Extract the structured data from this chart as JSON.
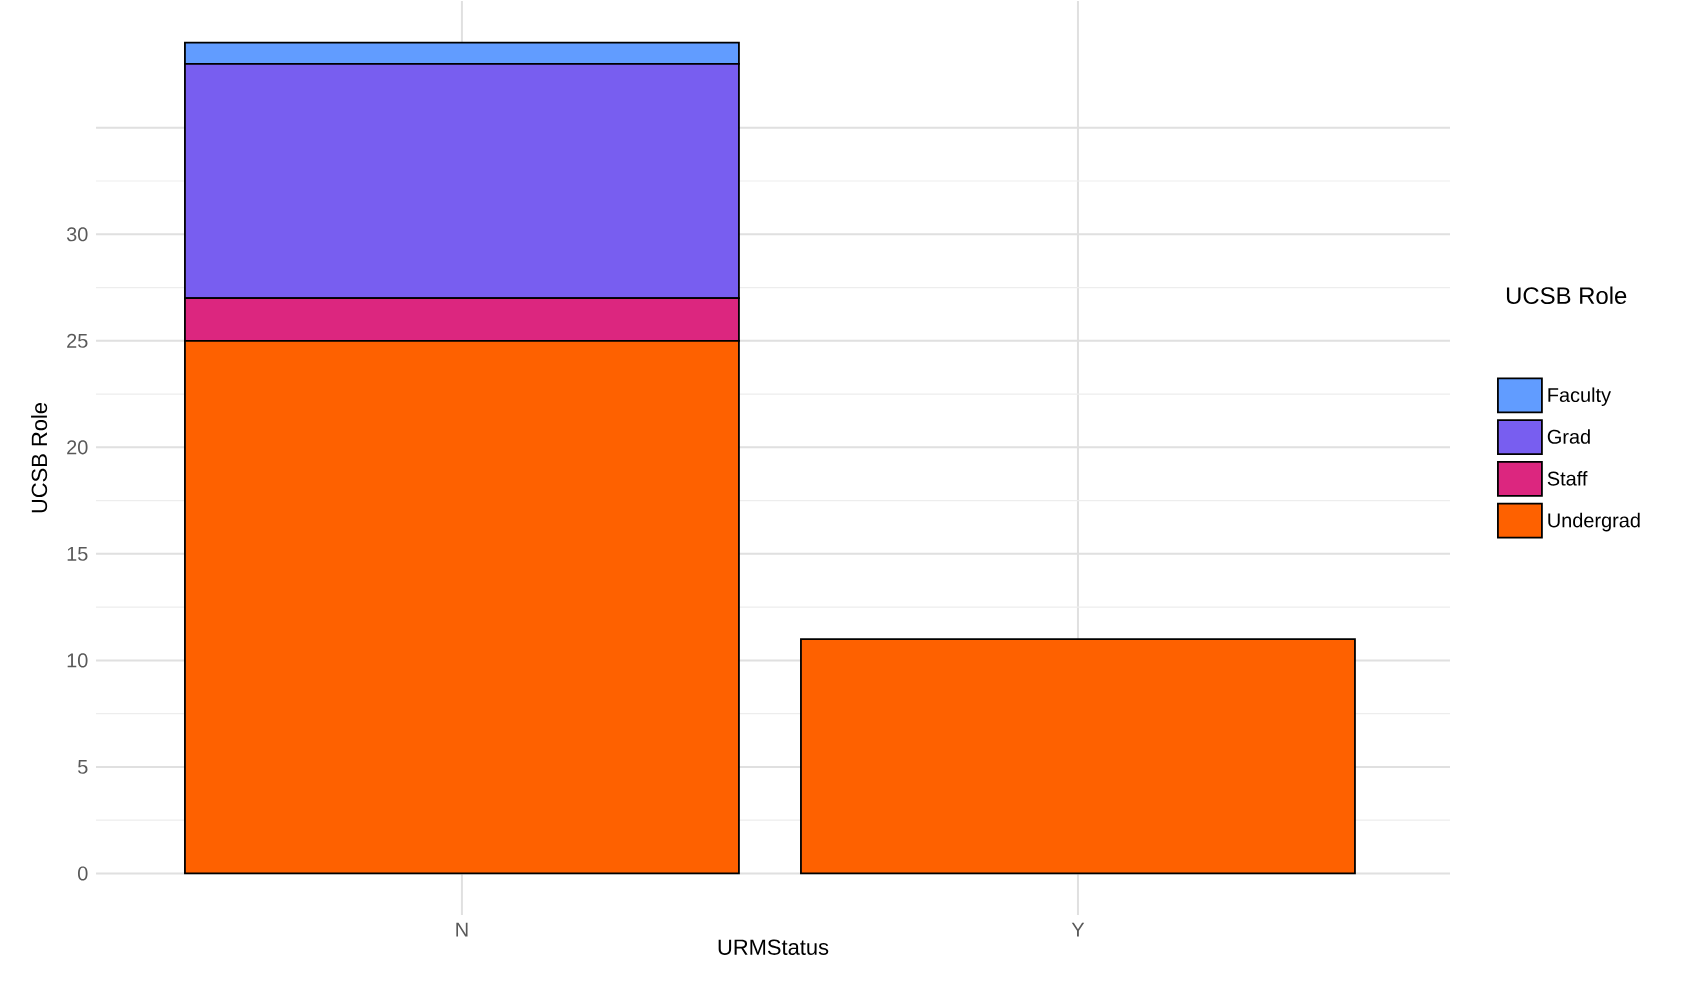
{
  "chart_data": {
    "type": "bar",
    "stacked": true,
    "xlabel": "URMStatus",
    "ylabel": "UCSB Role",
    "legend_title": "UCSB Role",
    "legend": "right",
    "grid": true,
    "categories": [
      "N",
      "Y"
    ],
    "ylim": [
      -1.95,
      40.95
    ],
    "yticks": [
      0,
      5,
      10,
      15,
      20,
      25,
      30,
      {
        "value": 35,
        "label": null
      }
    ],
    "series": [
      {
        "name": "Undergrad",
        "color": "#fe6100",
        "values": [
          25,
          11
        ]
      },
      {
        "name": "Staff",
        "color": "#dc267f",
        "values": [
          2,
          null
        ]
      },
      {
        "name": "Grad",
        "color": "#785ef0",
        "values": [
          11,
          null
        ]
      },
      {
        "name": "Faculty",
        "color": "#619cff",
        "values": [
          1,
          null
        ]
      }
    ]
  }
}
